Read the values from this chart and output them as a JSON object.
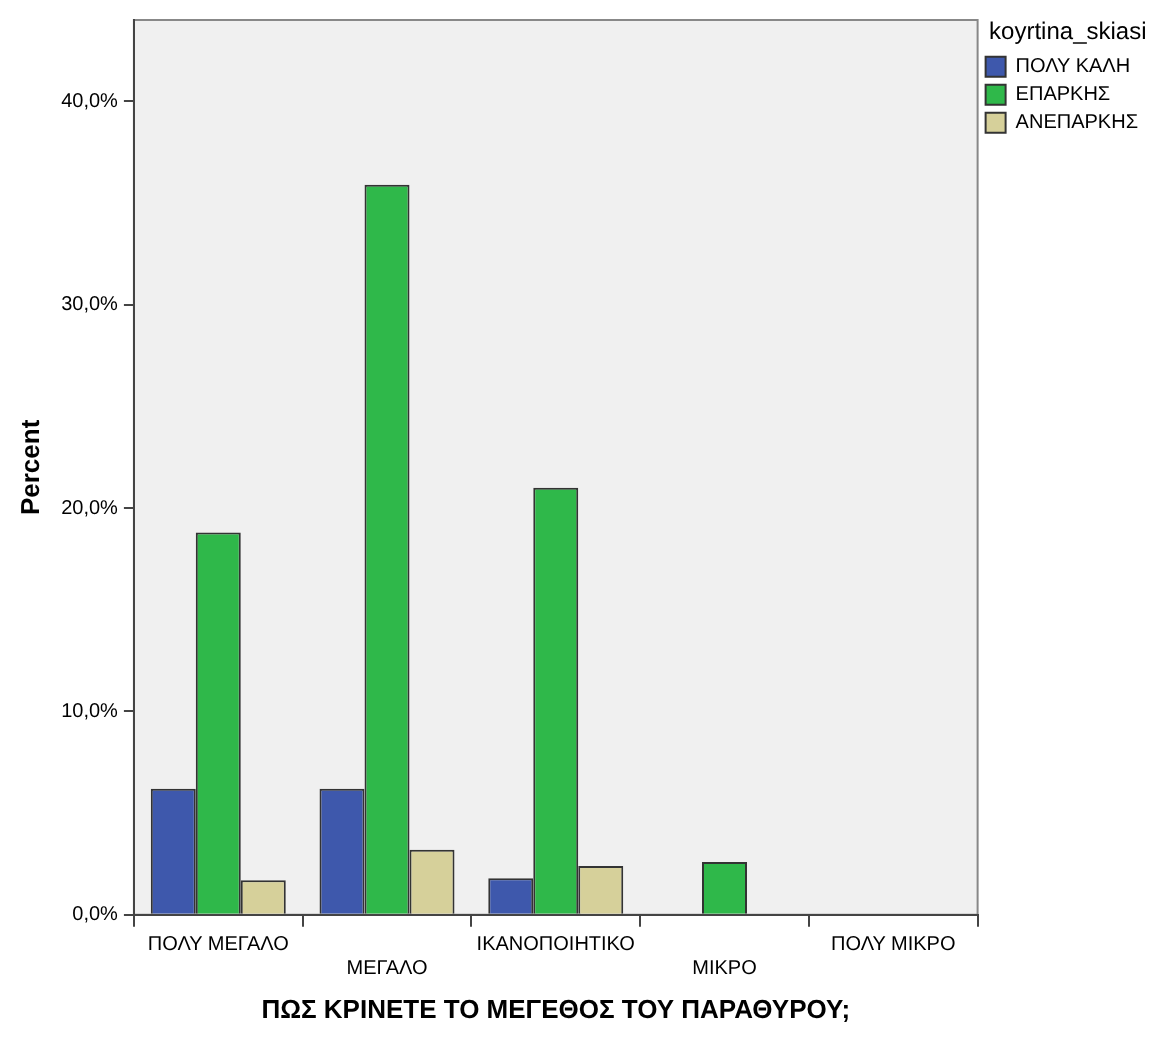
{
  "chart_data": {
    "type": "bar",
    "xlabel": "ΠΩΣ ΚΡΙΝΕΤΕ ΤΟ ΜΕΓΕΘΟΣ ΤΟΥ ΠΑΡΑΘΥΡΟΥ;",
    "ylabel": "Percent",
    "legend_title": "koyrtina_skiasi",
    "categories": [
      "ΠΟΛΥ ΜΕΓΑΛΟ",
      "ΜΕΓΑΛΟ",
      "ΙΚΑΝΟΠΟΙΗΤΙΚΟ",
      "ΜΙΚΡΟ",
      "ΠΟΛΥ ΜΙΚΡΟ"
    ],
    "series": [
      {
        "name": "ΠΟΛΥ ΚΑΛΗ",
        "color": "#3e58ac",
        "values": [
          6.2,
          6.2,
          1.8,
          0,
          0
        ]
      },
      {
        "name": "ΕΠΑΡΚΗΣ",
        "color": "#2fb84a",
        "values": [
          18.8,
          35.9,
          21.0,
          2.6,
          0
        ]
      },
      {
        "name": "ΑΝΕΠΑΡΚΗΣ",
        "color": "#d6d09a",
        "values": [
          1.7,
          3.2,
          2.4,
          0,
          0
        ]
      }
    ],
    "ylim": [
      0,
      44
    ],
    "yticks": [
      {
        "value": 0,
        "label": "0,0%"
      },
      {
        "value": 10,
        "label": "10,0%"
      },
      {
        "value": 20,
        "label": "20,0%"
      },
      {
        "value": 30,
        "label": "30,0%"
      },
      {
        "value": 40,
        "label": "40,0%"
      }
    ],
    "grid": false,
    "legend": "top right"
  }
}
